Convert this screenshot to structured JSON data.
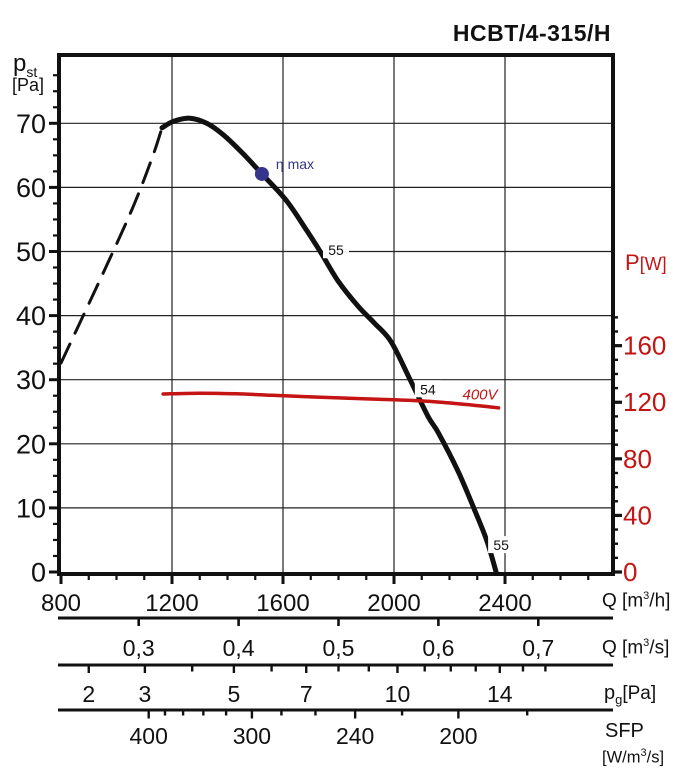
{
  "title": "HCBT/4-315/H",
  "labels": {
    "pst": {
      "main": "p",
      "sub": "st",
      "unit": "[Pa]"
    },
    "pw": {
      "main": "P",
      "unit": "[W]"
    },
    "qh": {
      "pre": "Q [m",
      "sup": "3",
      "post": "/h]"
    },
    "qs": {
      "pre": "Q [m",
      "sup": "3",
      "post": "/s]"
    },
    "pg": {
      "main": "p",
      "sub": "g",
      "unit": "[Pa]"
    },
    "sfp": {
      "name": "SFP",
      "pre": "[W/m",
      "sup": "3",
      "post": "/s]"
    }
  },
  "chart_data": {
    "type": "line",
    "title": "HCBT/4-315/H",
    "x_axis": {
      "label": "Q [m3/h]",
      "major_ticks": [
        800,
        1200,
        1600,
        2000,
        2400
      ],
      "minor_step": 100,
      "minor_max": 2700,
      "gridlines": [
        1200,
        1600,
        2000,
        2400
      ],
      "range": [
        800,
        2782
      ]
    },
    "y_left": {
      "label": "p_st [Pa]",
      "major_ticks": [
        0,
        10,
        20,
        30,
        40,
        50,
        60,
        70
      ],
      "minor_step": 2.5,
      "minor_max": 80,
      "gridlines": [
        10,
        20,
        30,
        40,
        50,
        60,
        70
      ],
      "range": [
        0,
        80.3
      ]
    },
    "y_right": {
      "label": "P [W]",
      "major_ticks": [
        0,
        40,
        80,
        120,
        160
      ],
      "minor_step": 10,
      "minor_max": 180,
      "color": "#c41414"
    },
    "scales": {
      "q_m3s": {
        "label": "Q [m3/s]",
        "ticks": [
          0.3,
          0.4,
          0.5,
          0.6,
          0.7
        ],
        "tick_labels": [
          "0,3",
          "0,4",
          "0,5",
          "0,6",
          "0,7"
        ]
      },
      "pg_pa": {
        "label": "pg [Pa]",
        "ticks": [
          2,
          3,
          4,
          5,
          6,
          7,
          8,
          9,
          10,
          11,
          12,
          13,
          14,
          15,
          16
        ],
        "labeled": [
          2,
          3,
          5,
          7,
          10,
          14
        ],
        "q_per_sqrt_pa": 636.4
      },
      "sfp": {
        "label": "SFP [W/m3/s]",
        "ticks": [
          400,
          380,
          360,
          340,
          320,
          300,
          280,
          260,
          240,
          220,
          200,
          180
        ],
        "labeled": [
          400,
          300,
          240,
          200
        ],
        "power_ref_w": 124
      }
    },
    "series": [
      {
        "name": "fan-curve-dashed",
        "style": "dashed",
        "color": "#111111",
        "unit": "Pa",
        "points": [
          [
            800,
            32.6
          ],
          [
            962,
            47.6
          ],
          [
            1063,
            57.3
          ],
          [
            1130,
            64.8
          ],
          [
            1164,
            69.3
          ]
        ]
      },
      {
        "name": "fan-curve",
        "style": "solid",
        "color": "#111111",
        "unit": "Pa",
        "points": [
          [
            1164,
            69.3
          ],
          [
            1205,
            70.3
          ],
          [
            1264,
            70.8
          ],
          [
            1325,
            70.0
          ],
          [
            1385,
            68.2
          ],
          [
            1455,
            65.3
          ],
          [
            1524,
            62.1
          ],
          [
            1611,
            58.0
          ],
          [
            1685,
            53.3
          ],
          [
            1737,
            49.8
          ],
          [
            1800,
            45.3
          ],
          [
            1870,
            41.5
          ],
          [
            1930,
            38.8
          ],
          [
            1990,
            35.9
          ],
          [
            2058,
            30.0
          ],
          [
            2122,
            24.3
          ],
          [
            2160,
            21.7
          ],
          [
            2230,
            15.8
          ],
          [
            2290,
            9.7
          ],
          [
            2335,
            4.8
          ],
          [
            2368,
            0
          ]
        ]
      },
      {
        "name": "power-curve-400V",
        "style": "solid",
        "color": "#c41414",
        "unit": "W",
        "points": [
          [
            1168,
            125.8
          ],
          [
            1300,
            126.4
          ],
          [
            1430,
            126.0
          ],
          [
            1560,
            124.9
          ],
          [
            1700,
            123.8
          ],
          [
            1850,
            122.7
          ],
          [
            2000,
            121.7
          ],
          [
            2120,
            120.7
          ],
          [
            2230,
            119.0
          ],
          [
            2320,
            117.3
          ],
          [
            2377,
            116.0
          ]
        ]
      }
    ],
    "annotations": {
      "eta_max": {
        "text": "η max",
        "q": 1524,
        "p_pa": 62.1,
        "color": "#35358b"
      },
      "efficiency_labels": [
        {
          "text": "55",
          "q": 1791,
          "p_pa": 50.2
        },
        {
          "text": "54",
          "q": 2122,
          "p_pa": 28.5
        },
        {
          "text": "55",
          "q": 2386,
          "p_pa": 4.2
        }
      ],
      "voltage_label": {
        "text": "400V",
        "q": 2310,
        "p_w": 127,
        "color": "#c41414"
      }
    }
  }
}
